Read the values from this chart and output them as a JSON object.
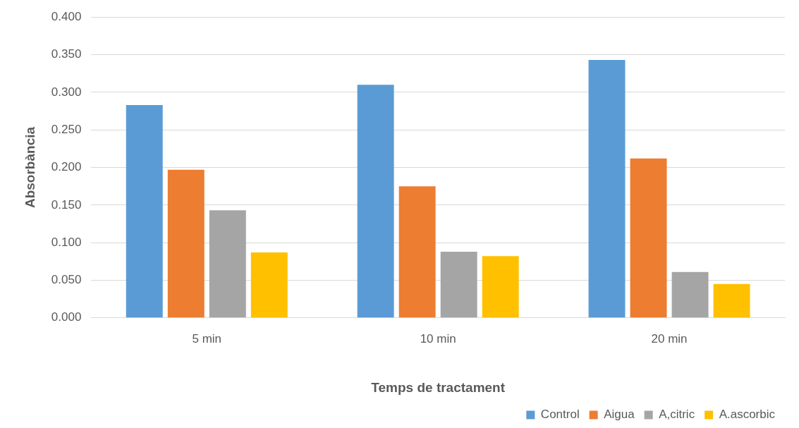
{
  "chart_data": {
    "type": "bar",
    "xlabel": "Temps de tractament",
    "ylabel": "Absorbància",
    "categories": [
      "5 min",
      "10 min",
      "20 min"
    ],
    "series": [
      {
        "name": "Control",
        "color": "#5b9bd5",
        "values": [
          0.283,
          0.31,
          0.343
        ]
      },
      {
        "name": "Aigua",
        "color": "#ed7d31",
        "values": [
          0.197,
          0.175,
          0.212
        ]
      },
      {
        "name": "A,citric",
        "color": "#a5a5a5",
        "values": [
          0.143,
          0.088,
          0.061
        ]
      },
      {
        "name": "A.ascorbic",
        "color": "#ffc000",
        "values": [
          0.087,
          0.082,
          0.045
        ]
      }
    ],
    "ylim": [
      0,
      0.4
    ],
    "yticks": [
      {
        "value": 0,
        "label": "0.000"
      },
      {
        "value": 0.05,
        "label": "0.050"
      },
      {
        "value": 0.1,
        "label": "0.100"
      },
      {
        "value": 0.15,
        "label": "0.150"
      },
      {
        "value": 0.2,
        "label": "0.200"
      },
      {
        "value": 0.25,
        "label": "0.250"
      },
      {
        "value": 0.3,
        "label": "0.300"
      },
      {
        "value": 0.35,
        "label": "0.350"
      },
      {
        "value": 0.4,
        "label": "0.400"
      }
    ],
    "grid": "y",
    "legend": "bottom right"
  }
}
